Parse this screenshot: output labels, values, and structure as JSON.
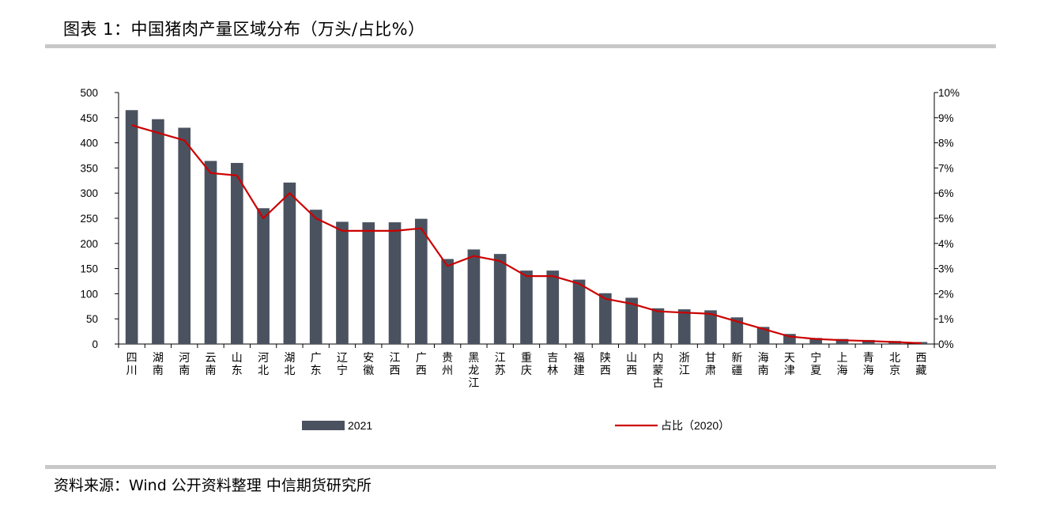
{
  "header": {
    "title": "图表 1：中国猪肉产量区域分布（万头/占比%）"
  },
  "footer": {
    "source": "资料来源：Wind 公开资料整理 中信期货研究所"
  },
  "chart_data": {
    "type": "bar",
    "categories": [
      "四川",
      "湖南",
      "河南",
      "云南",
      "山东",
      "河北",
      "湖北",
      "广东",
      "辽宁",
      "安徽",
      "江西",
      "广西",
      "贵州",
      "黑龙江",
      "江苏",
      "重庆",
      "吉林",
      "福建",
      "陕西",
      "山西",
      "内蒙古",
      "浙江",
      "甘肃",
      "新疆",
      "海南",
      "天津",
      "宁夏",
      "上海",
      "青海",
      "北京",
      "西藏"
    ],
    "series": [
      {
        "name": "2021",
        "type": "bar",
        "axis": "left",
        "color": "#4a5260",
        "values": [
          465,
          447,
          430,
          364,
          360,
          270,
          321,
          267,
          243,
          242,
          242,
          249,
          169,
          188,
          179,
          146,
          146,
          128,
          101,
          92,
          71,
          69,
          67,
          53,
          34,
          20,
          12,
          10,
          8,
          6,
          4
        ]
      },
      {
        "name": "占比（2020）",
        "type": "line",
        "axis": "right",
        "color": "#cc0000",
        "values": [
          8.7,
          8.4,
          8.1,
          6.8,
          6.7,
          5.0,
          6.0,
          5.0,
          4.5,
          4.5,
          4.5,
          4.6,
          3.1,
          3.5,
          3.3,
          2.7,
          2.7,
          2.4,
          1.8,
          1.6,
          1.3,
          1.25,
          1.2,
          0.9,
          0.6,
          0.3,
          0.2,
          0.15,
          0.12,
          0.08,
          0.03
        ]
      }
    ],
    "y_left": {
      "min": 0,
      "max": 500,
      "step": 50
    },
    "y_right": {
      "min": 0,
      "max": 10,
      "step": 1,
      "unit": "%"
    },
    "legend": [
      "2021",
      "占比（2020）"
    ],
    "legend_position": "bottom",
    "grid": false
  }
}
